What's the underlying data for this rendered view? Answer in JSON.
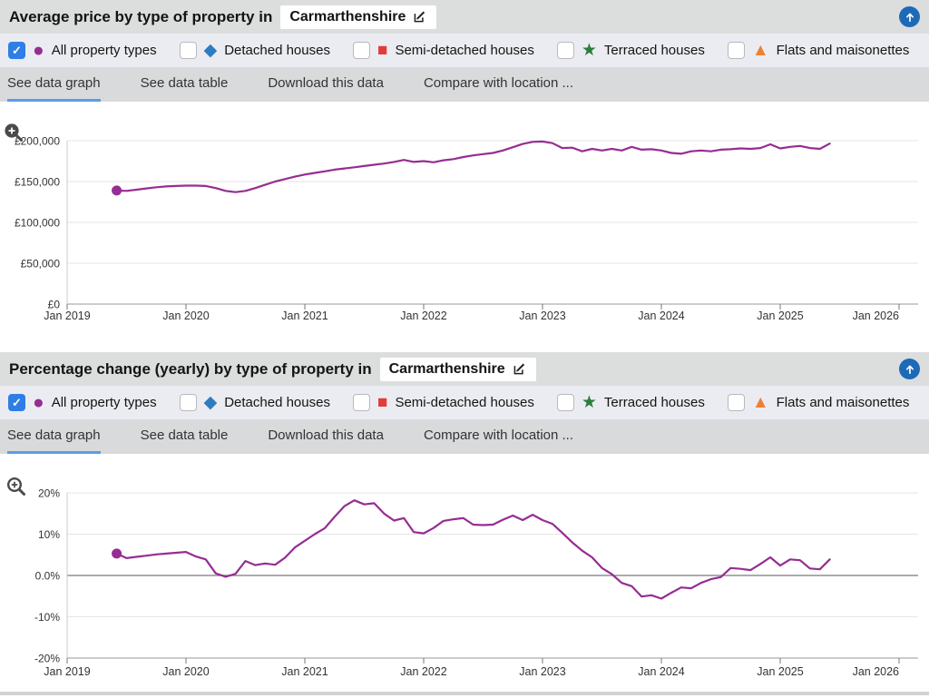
{
  "shared": {
    "legend": [
      {
        "label": "All property types",
        "marker": "circle",
        "color": "#962d92",
        "checked": true
      },
      {
        "label": "Detached houses",
        "marker": "diamond",
        "color": "#2e7cc0",
        "checked": false
      },
      {
        "label": "Semi-detached houses",
        "marker": "square",
        "color": "#e23b3b",
        "checked": false
      },
      {
        "label": "Terraced houses",
        "marker": "star",
        "color": "#2a7d3f",
        "checked": false
      },
      {
        "label": "Flats and maisonettes",
        "marker": "triangle",
        "color": "#ef7f36",
        "checked": false
      }
    ],
    "tabs": [
      {
        "label": "See data graph",
        "active": true
      },
      {
        "label": "See data table",
        "active": false
      },
      {
        "label": "Download this data",
        "active": false
      },
      {
        "label": "Compare with location ...",
        "active": false
      }
    ],
    "colors": {
      "header_bg": "#dcdddd",
      "legend_bg": "#ebecf1",
      "tabs_bg": "#d9dadb",
      "active_tab_underline": "#5b9ce6",
      "checkbox_checked": "#2e7ee5",
      "top_button": "#1d6ab8",
      "series_purple": "#962d92"
    }
  },
  "panels": [
    {
      "title": "Average price by type of property in",
      "location": "Carmarthenshire",
      "chart_data": {
        "type": "line",
        "title": "Average price by type of property in Carmarthenshire",
        "xlabel": "",
        "ylabel": "",
        "ylim": [
          0,
          200000
        ],
        "y_ticks": [
          "£200,000",
          "£150,000",
          "£100,000",
          "£50,000",
          "£0"
        ],
        "x_ticks": [
          "Jan 2019",
          "Jan 2020",
          "Jan 2021",
          "Jan 2022",
          "Jan 2023",
          "Jan 2024",
          "Jan 2025",
          "Jan 2026"
        ],
        "grid": true,
        "legend_position": "none",
        "series": [
          {
            "name": "All property types",
            "color": "#962d92",
            "start": "2019-06",
            "frequency": "monthly",
            "values_gbp": [
              139000,
              138500,
              140000,
              141500,
              143000,
              144000,
              144500,
              145000,
              145000,
              144500,
              142000,
              138500,
              137000,
              138500,
              142000,
              146000,
              150000,
              153000,
              156000,
              158500,
              160500,
              162500,
              164500,
              166000,
              167500,
              169000,
              170500,
              172000,
              174000,
              176500,
              174000,
              175000,
              173500,
              176000,
              177500,
              180000,
              182000,
              183500,
              185000,
              188000,
              192000,
              196000,
              198500,
              199000,
              197000,
              191000,
              191500,
              187000,
              190000,
              188000,
              190000,
              188000,
              192500,
              189000,
              189500,
              188000,
              185000,
              184000,
              187000,
              188000,
              187000,
              189000,
              189500,
              190500,
              190000,
              191000,
              195500,
              190500,
              192500,
              193500,
              191000,
              190000,
              196500
            ]
          }
        ]
      }
    },
    {
      "title": "Percentage change (yearly) by type of property in",
      "location": "Carmarthenshire",
      "chart_data": {
        "type": "line",
        "title": "Percentage change (yearly) by type of property in Carmarthenshire",
        "xlabel": "",
        "ylabel": "",
        "ylim": [
          -20,
          20
        ],
        "y_ticks": [
          "20%",
          "10%",
          "0.0%",
          "-10%",
          "-20%"
        ],
        "x_ticks": [
          "Jan 2019",
          "Jan 2020",
          "Jan 2021",
          "Jan 2022",
          "Jan 2023",
          "Jan 2024",
          "Jan 2025",
          "Jan 2026"
        ],
        "grid": true,
        "legend_position": "none",
        "series": [
          {
            "name": "All property types",
            "color": "#962d92",
            "start": "2019-06",
            "frequency": "monthly",
            "values_pct": [
              5.3,
              4.2,
              4.5,
              4.8,
              5.1,
              5.3,
              5.5,
              5.7,
              4.6,
              3.9,
              0.5,
              -0.3,
              0.4,
              3.5,
              2.5,
              2.9,
              2.6,
              4.3,
              6.8,
              8.4,
              10.0,
              11.4,
              14.2,
              16.8,
              18.2,
              17.2,
              17.5,
              15.0,
              13.3,
              13.9,
              10.5,
              10.2,
              11.5,
              13.2,
              13.6,
              13.9,
              12.3,
              12.2,
              12.3,
              13.5,
              14.5,
              13.4,
              14.7,
              13.4,
              12.5,
              10.3,
              8.0,
              6.0,
              4.4,
              1.8,
              0.3,
              -1.8,
              -2.6,
              -5.1,
              -4.8,
              -5.6,
              -4.2,
              -2.9,
              -3.1,
              -1.8,
              -0.9,
              -0.4,
              1.8,
              1.6,
              1.3,
              2.8,
              4.4,
              2.4,
              3.9,
              3.7,
              1.7,
              1.5,
              3.9
            ]
          }
        ]
      }
    }
  ]
}
